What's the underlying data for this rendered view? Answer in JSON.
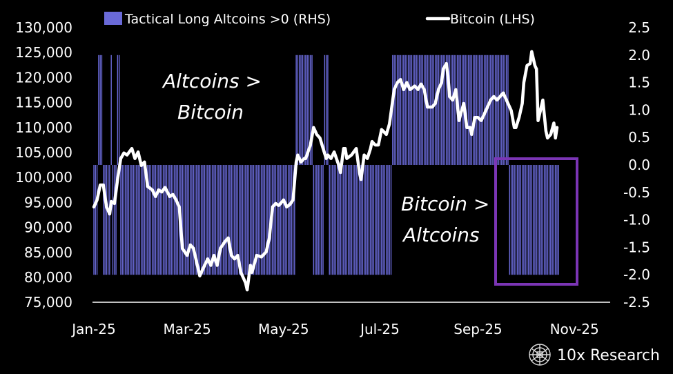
{
  "chart_data": {
    "type": "bar+line",
    "legend": {
      "position": "top",
      "entries": [
        "Tactical Long Altcoins >0 (RHS)",
        "Bitcoin (LHS)"
      ]
    },
    "colors": {
      "bars": "#6a6ad8",
      "line": "#ffffff",
      "box": "#7b35b5",
      "background": "#000000"
    },
    "left_axis": {
      "range": [
        75000,
        130000
      ],
      "ticks": [
        "130,000",
        "125,000",
        "120,000",
        "115,000",
        "110,000",
        "105,000",
        "100,000",
        "95,000",
        "90,000",
        "85,000",
        "80,000",
        "75,000"
      ],
      "tick_values": [
        130000,
        125000,
        120000,
        115000,
        110000,
        105000,
        100000,
        95000,
        90000,
        85000,
        80000,
        75000
      ]
    },
    "right_axis": {
      "range": [
        -2.5,
        2.5
      ],
      "ticks": [
        "2.5",
        "2.0",
        "1.5",
        "1.0",
        "0.5",
        "0.0",
        "-0.5",
        "-1.0",
        "-1.5",
        "-2.0",
        "-2.5"
      ],
      "tick_values": [
        2.5,
        2.0,
        1.5,
        1.0,
        0.5,
        0.0,
        -0.5,
        -1.0,
        -1.5,
        -2.0,
        -2.5
      ]
    },
    "x_axis": {
      "unit": "days since 2025-01-01",
      "ticks": [
        "Jan-25",
        "Mar-25",
        "May-25",
        "Jul-25",
        "Sep-25",
        "Nov-25"
      ],
      "tick_days": [
        0,
        59,
        120,
        181,
        243,
        304
      ]
    },
    "signal_segments": [
      {
        "start_day": 0,
        "end_day": 2,
        "value": -2
      },
      {
        "start_day": 3,
        "end_day": 5,
        "value": 2
      },
      {
        "start_day": 6,
        "end_day": 10,
        "value": -2
      },
      {
        "start_day": 11,
        "end_day": 11,
        "value": 2
      },
      {
        "start_day": 12,
        "end_day": 14,
        "value": -2
      },
      {
        "start_day": 15,
        "end_day": 16,
        "value": 2
      },
      {
        "start_day": 17,
        "end_day": 127,
        "value": -2
      },
      {
        "start_day": 128,
        "end_day": 138,
        "value": 2
      },
      {
        "start_day": 139,
        "end_day": 145,
        "value": -2
      },
      {
        "start_day": 146,
        "end_day": 148,
        "value": 2
      },
      {
        "start_day": 149,
        "end_day": 188,
        "value": -2
      },
      {
        "start_day": 189,
        "end_day": 262,
        "value": 2
      },
      {
        "start_day": 263,
        "end_day": 294,
        "value": -2
      }
    ],
    "bitcoin": {
      "day": [
        0,
        2,
        4,
        6,
        8,
        10,
        11,
        13,
        15,
        17,
        19,
        21,
        24,
        26,
        28,
        30,
        32,
        34,
        37,
        39,
        41,
        43,
        45,
        48,
        50,
        52,
        54,
        56,
        59,
        61,
        63,
        65,
        67,
        69,
        72,
        74,
        76,
        78,
        80,
        83,
        85,
        87,
        89,
        91,
        93,
        96,
        97,
        99,
        100,
        103,
        106,
        109,
        111,
        113,
        115,
        117,
        120,
        122,
        124,
        126,
        128,
        129,
        131,
        133,
        134,
        137,
        139,
        141,
        143,
        145,
        147,
        148,
        150,
        152,
        155,
        156,
        158,
        159,
        160,
        163,
        166,
        168,
        169,
        171,
        173,
        175,
        176,
        178,
        180,
        182,
        183,
        185,
        187,
        190,
        192,
        194,
        196,
        198,
        200,
        203,
        205,
        207,
        209,
        211,
        214,
        216,
        218,
        220,
        221,
        223,
        224,
        225,
        227,
        229,
        231,
        232,
        234,
        236,
        238,
        239,
        241,
        243,
        245,
        246,
        248,
        251,
        253,
        255,
        257,
        259,
        262,
        264,
        266,
        267,
        269,
        271,
        272,
        274,
        276,
        277,
        279,
        280,
        281,
        283,
        284,
        286,
        287,
        289,
        291,
        292,
        293
      ],
      "price": [
        94100,
        95500,
        98500,
        98500,
        94100,
        92700,
        95200,
        94800,
        99600,
        103800,
        104900,
        104500,
        105800,
        103800,
        105100,
        102400,
        103100,
        98200,
        97500,
        96200,
        97500,
        97100,
        98000,
        96200,
        96600,
        95500,
        94100,
        85800,
        84400,
        86500,
        85800,
        83000,
        80300,
        81700,
        83700,
        82400,
        84400,
        82400,
        85800,
        87200,
        87900,
        84400,
        83700,
        84400,
        81000,
        78900,
        77500,
        82400,
        81000,
        84400,
        84100,
        85100,
        87900,
        94100,
        94800,
        94400,
        95500,
        94100,
        94600,
        95500,
        103100,
        104500,
        103100,
        103800,
        103800,
        106500,
        110000,
        108600,
        107900,
        105800,
        103800,
        104500,
        103800,
        105100,
        102400,
        101000,
        105800,
        105800,
        103800,
        104500,
        105800,
        101000,
        99600,
        104500,
        103800,
        105800,
        107200,
        106500,
        106500,
        109600,
        109300,
        108600,
        110700,
        117600,
        119000,
        119600,
        117600,
        119000,
        117600,
        118300,
        117600,
        118700,
        117600,
        114100,
        114100,
        114800,
        117600,
        119000,
        121700,
        122800,
        120300,
        116200,
        115500,
        117600,
        111400,
        112700,
        114800,
        110000,
        110000,
        108600,
        112000,
        112000,
        111400,
        112000,
        113400,
        115500,
        116200,
        115500,
        116200,
        116900,
        114800,
        113400,
        110000,
        110000,
        112000,
        114800,
        119000,
        122400,
        122800,
        125200,
        122400,
        121700,
        111400,
        114100,
        115500,
        109300,
        107900,
        108600,
        110900,
        107900,
        110000
      ]
    },
    "annotations": [
      {
        "line1": "Altcoins >",
        "line2": "Bitcoin"
      },
      {
        "line1": "Bitcoin >",
        "line2": "Altcoins"
      }
    ]
  },
  "branding": {
    "logo_text": "10x Research"
  }
}
